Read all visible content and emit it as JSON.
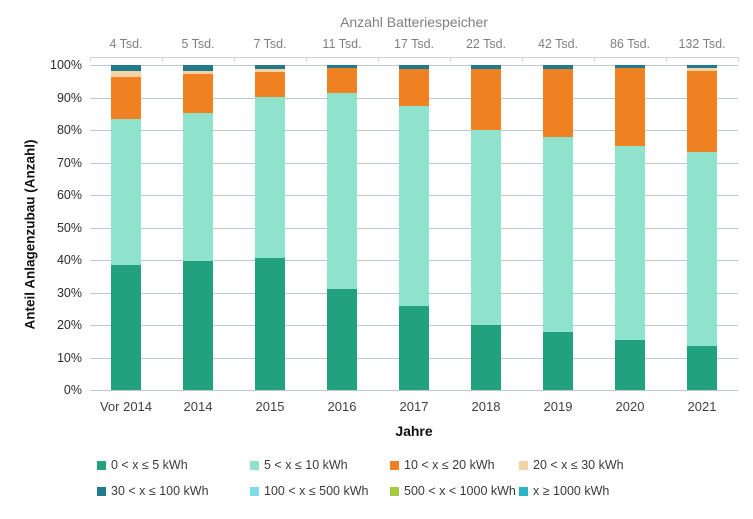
{
  "chart_data": {
    "type": "bar",
    "variant": "stacked-100-percent",
    "title": "Anzahl Batteriespeicher",
    "xlabel": "Jahre",
    "ylabel": "Anteil Anlagenzubau (Anzahl)",
    "categories": [
      "Vor 2014",
      "2014",
      "2015",
      "2016",
      "2017",
      "2018",
      "2019",
      "2020",
      "2021"
    ],
    "top_labels": [
      "4 Tsd.",
      "5 Tsd.",
      "7 Tsd.",
      "11 Tsd.",
      "17 Tsd.",
      "22 Tsd.",
      "42 Tsd.",
      "86 Tsd.",
      "132 Tsd."
    ],
    "y_ticks": [
      "100%",
      "90%",
      "80%",
      "70%",
      "60%",
      "50%",
      "40%",
      "30%",
      "20%",
      "10%",
      "0%"
    ],
    "ylim": [
      0,
      100
    ],
    "grid": true,
    "legend_position": "bottom",
    "series": [
      {
        "name": "0 < x ≤ 5 kWh",
        "color": "#21A17D",
        "values": [
          38.4,
          39.7,
          40.6,
          31.0,
          25.9,
          20.0,
          17.7,
          15.3,
          13.4
        ]
      },
      {
        "name": "5 < x ≤ 10 kWh",
        "color": "#8FE3CD",
        "values": [
          45.1,
          45.4,
          49.6,
          60.4,
          61.5,
          60.1,
          60.3,
          59.7,
          59.7
        ]
      },
      {
        "name": "10 < x ≤ 20 kWh",
        "color": "#EF8122",
        "values": [
          12.9,
          12.0,
          7.7,
          7.7,
          11.5,
          18.7,
          20.9,
          24.0,
          25.2
        ]
      },
      {
        "name": "20 < x ≤ 30 kWh",
        "color": "#F5D2A5",
        "values": [
          1.9,
          1.1,
          1.0,
          0,
          0,
          0,
          0,
          0,
          0.8
        ]
      },
      {
        "name": "30 < x ≤ 100 kWh",
        "color": "#20798C",
        "values": [
          1.7,
          1.8,
          1.1,
          0.9,
          1.1,
          1.2,
          1.1,
          1.0,
          0.9
        ]
      },
      {
        "name": "100 < x ≤ 500 kWh",
        "color": "#7FDBEA",
        "values": [
          0,
          0,
          0,
          0,
          0,
          0,
          0,
          0,
          0
        ]
      },
      {
        "name": "500 < x < 1000 kWh",
        "color": "#A6C93D",
        "values": [
          0,
          0,
          0,
          0,
          0,
          0,
          0,
          0,
          0
        ]
      },
      {
        "name": "x ≥ 1000 kWh",
        "color": "#2BB3C6",
        "values": [
          0,
          0,
          0,
          0,
          0,
          0,
          0,
          0,
          0
        ]
      }
    ]
  }
}
